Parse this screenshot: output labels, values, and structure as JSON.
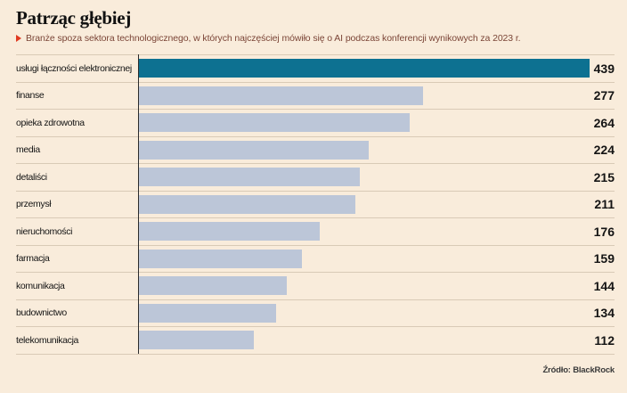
{
  "page": {
    "title": "Patrząc głębiej",
    "subtitle": "Branże spoza sektora technologicznego, w których najczęściej mówiło się o AI podczas konferencji wynikowych za 2023 r.",
    "source": "Źródło: BlackRock"
  },
  "colors": {
    "background": "#f9ecdb",
    "highlight_bar": "#0d7191",
    "bar": "#bcc6d8",
    "separator": "#d9cab6",
    "axis_line": "#2b2b2b",
    "subtitle_text": "#7b4537",
    "marker_red": "#e03a21",
    "text": "#141414"
  },
  "chart_data": {
    "type": "bar",
    "orientation": "horizontal",
    "title": "Patrząc głębiej",
    "subtitle": "Branże spoza sektora technologicznego, w których najczęściej mówiło się o AI podczas konferencji wynikowych za 2023 r.",
    "categories": [
      "usługi łączności elektronicznej",
      "finanse",
      "opieka zdrowotna",
      "media",
      "detaliści",
      "przemysł",
      "nieruchomości",
      "farmacja",
      "komunikacja",
      "budownictwo",
      "telekomunikacja"
    ],
    "values": [
      439,
      277,
      264,
      224,
      215,
      211,
      176,
      159,
      144,
      134,
      112
    ],
    "highlighted_category": "usługi łączności elektronicznej",
    "value_labels_position": "right",
    "xlim": [
      0,
      439
    ],
    "grid": false,
    "legend": false,
    "source": "Źródło: BlackRock"
  }
}
